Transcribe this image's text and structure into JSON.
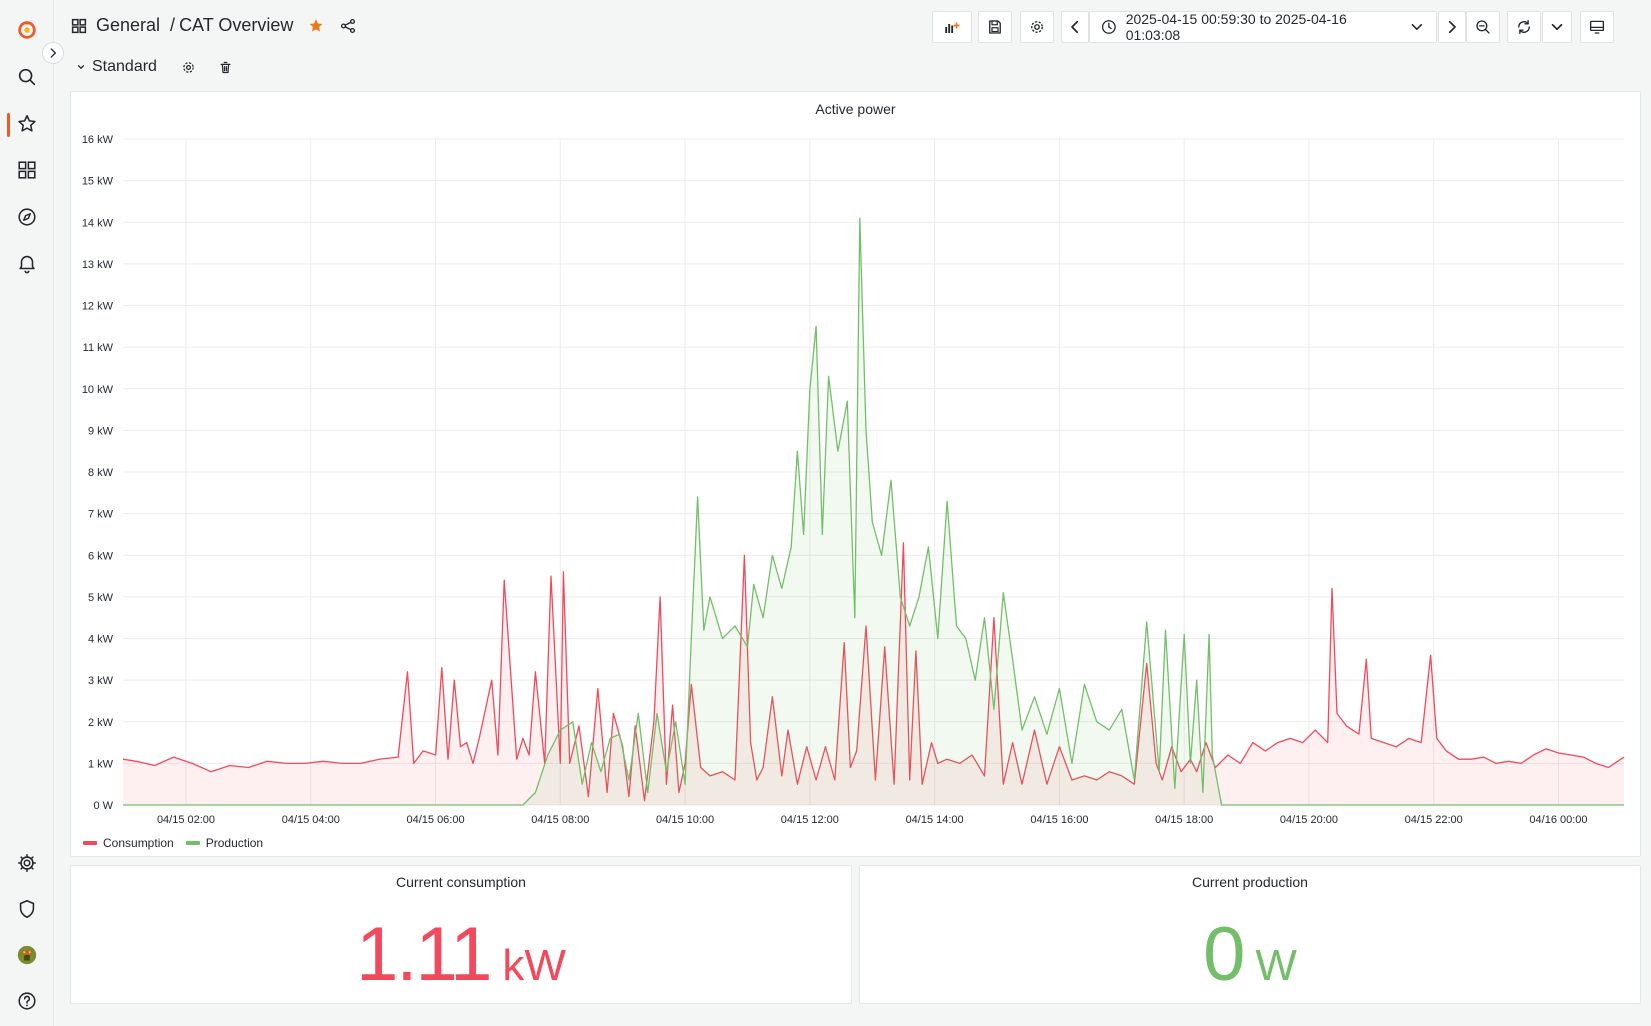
{
  "breadcrumb": {
    "folder": "General",
    "separator": "/",
    "dashboard": "CAT Overview"
  },
  "toolbar": {
    "time_range": "2025-04-15 00:59:30 to 2025-04-16 01:03:08"
  },
  "row": {
    "title": "Standard"
  },
  "sidebar": {
    "items": [
      "grafana-logo-icon",
      "search-icon",
      "starred-icon",
      "dashboards-icon",
      "explore-icon",
      "alerting-icon",
      "configuration-icon",
      "server-admin-icon",
      "user-avatar",
      "help-icon"
    ]
  },
  "colors": {
    "consumption": "#f2495c",
    "production": "#73bf69",
    "accent": "#f05a28",
    "star": "#eb7b18"
  },
  "chart_panel": {
    "title": "Active power",
    "legend": [
      {
        "name": "Consumption",
        "color": "#f2495c"
      },
      {
        "name": "Production",
        "color": "#73bf69"
      }
    ]
  },
  "chart_data": {
    "type": "line",
    "title": "Active power",
    "xlabel": "",
    "ylabel": "",
    "y_ticks": [
      "0 W",
      "1 kW",
      "2 kW",
      "3 kW",
      "4 kW",
      "5 kW",
      "6 kW",
      "7 kW",
      "8 kW",
      "9 kW",
      "10 kW",
      "11 kW",
      "12 kW",
      "13 kW",
      "14 kW",
      "15 kW",
      "16 kW"
    ],
    "ylim": [
      0,
      16
    ],
    "yunit": "kW",
    "x_ticks": [
      {
        "t": 2.0,
        "label": "04/15 02:00"
      },
      {
        "t": 4.0,
        "label": "04/15 04:00"
      },
      {
        "t": 6.0,
        "label": "04/15 06:00"
      },
      {
        "t": 8.0,
        "label": "04/15 08:00"
      },
      {
        "t": 10.0,
        "label": "04/15 10:00"
      },
      {
        "t": 12.0,
        "label": "04/15 12:00"
      },
      {
        "t": 14.0,
        "label": "04/15 14:00"
      },
      {
        "t": 16.0,
        "label": "04/15 16:00"
      },
      {
        "t": 18.0,
        "label": "04/15 18:00"
      },
      {
        "t": 20.0,
        "label": "04/15 20:00"
      },
      {
        "t": 22.0,
        "label": "04/15 22:00"
      },
      {
        "t": 24.0,
        "label": "04/16 00:00"
      }
    ],
    "xlim": [
      0.99,
      25.05
    ],
    "x_unit": "hours since 04/15 00:00",
    "grid": true,
    "legend_position": "bottom-left",
    "series": [
      {
        "name": "Consumption",
        "color": "#f2495c",
        "x": [
          0.99,
          1.2,
          1.5,
          1.8,
          2.1,
          2.4,
          2.7,
          3.0,
          3.3,
          3.6,
          3.9,
          4.2,
          4.5,
          4.8,
          5.1,
          5.4,
          5.55,
          5.65,
          5.8,
          6.0,
          6.1,
          6.2,
          6.3,
          6.4,
          6.5,
          6.6,
          6.7,
          6.9,
          7.0,
          7.1,
          7.3,
          7.4,
          7.5,
          7.6,
          7.75,
          7.85,
          8.0,
          8.05,
          8.15,
          8.3,
          8.45,
          8.6,
          8.75,
          8.85,
          9.0,
          9.1,
          9.2,
          9.35,
          9.5,
          9.6,
          9.7,
          9.8,
          9.9,
          10.0,
          10.1,
          10.25,
          10.4,
          10.6,
          10.8,
          10.95,
          11.05,
          11.15,
          11.25,
          11.4,
          11.55,
          11.65,
          11.8,
          11.95,
          12.1,
          12.25,
          12.4,
          12.55,
          12.65,
          12.75,
          12.9,
          13.05,
          13.2,
          13.35,
          13.5,
          13.6,
          13.7,
          13.8,
          13.95,
          14.05,
          14.2,
          14.4,
          14.6,
          14.8,
          14.95,
          15.1,
          15.25,
          15.4,
          15.6,
          15.8,
          16.0,
          16.2,
          16.4,
          16.6,
          16.8,
          17.0,
          17.2,
          17.4,
          17.55,
          17.65,
          17.8,
          17.95,
          18.1,
          18.2,
          18.35,
          18.5,
          18.7,
          18.9,
          19.1,
          19.3,
          19.5,
          19.7,
          19.9,
          20.1,
          20.3,
          20.37,
          20.45,
          20.6,
          20.8,
          20.92,
          21.0,
          21.2,
          21.4,
          21.6,
          21.8,
          21.95,
          22.05,
          22.2,
          22.4,
          22.6,
          22.8,
          23.0,
          23.2,
          23.4,
          23.6,
          23.8,
          24.0,
          24.2,
          24.4,
          24.6,
          24.8,
          25.05
        ],
        "y": [
          1.1,
          1.05,
          0.95,
          1.15,
          1.0,
          0.8,
          0.95,
          0.9,
          1.05,
          1.0,
          1.0,
          1.05,
          1.0,
          1.0,
          1.1,
          1.15,
          3.2,
          1.0,
          1.3,
          1.2,
          3.3,
          1.1,
          3.0,
          1.4,
          1.5,
          1.0,
          1.6,
          3.0,
          1.2,
          5.4,
          1.1,
          1.6,
          1.2,
          3.2,
          1.0,
          5.5,
          1.0,
          5.6,
          1.0,
          1.9,
          0.2,
          2.8,
          0.3,
          2.2,
          1.4,
          0.2,
          1.9,
          0.1,
          2.0,
          5.0,
          0.5,
          2.4,
          0.3,
          1.0,
          2.9,
          0.9,
          0.7,
          0.8,
          0.6,
          6.0,
          1.5,
          0.6,
          0.9,
          2.6,
          0.7,
          1.8,
          0.5,
          1.4,
          0.6,
          1.4,
          0.6,
          3.9,
          0.9,
          1.3,
          4.3,
          0.6,
          3.8,
          0.5,
          6.3,
          0.6,
          3.7,
          0.5,
          1.5,
          1.0,
          1.1,
          1.0,
          1.2,
          0.7,
          4.5,
          0.5,
          1.5,
          0.5,
          1.8,
          0.5,
          1.4,
          0.6,
          0.7,
          0.6,
          0.8,
          0.7,
          0.5,
          3.4,
          1.0,
          0.6,
          1.4,
          0.8,
          1.1,
          0.8,
          1.5,
          0.9,
          1.2,
          1.0,
          1.5,
          1.3,
          1.5,
          1.6,
          1.5,
          1.8,
          1.5,
          5.2,
          2.2,
          1.9,
          1.7,
          3.5,
          1.6,
          1.5,
          1.4,
          1.6,
          1.5,
          3.6,
          1.6,
          1.3,
          1.1,
          1.1,
          1.15,
          1.0,
          1.05,
          1.0,
          1.2,
          1.35,
          1.25,
          1.2,
          1.15,
          1.0,
          0.9,
          1.15
        ]
      },
      {
        "name": "Production",
        "color": "#73bf69",
        "x": [
          0.99,
          7.4,
          7.6,
          7.8,
          8.0,
          8.2,
          8.35,
          8.5,
          8.65,
          8.8,
          8.95,
          9.1,
          9.25,
          9.4,
          9.55,
          9.7,
          9.85,
          10.0,
          10.1,
          10.2,
          10.3,
          10.4,
          10.6,
          10.8,
          11.0,
          11.1,
          11.25,
          11.4,
          11.55,
          11.7,
          11.8,
          11.9,
          12.0,
          12.1,
          12.2,
          12.3,
          12.45,
          12.6,
          12.72,
          12.8,
          12.9,
          13.0,
          13.15,
          13.3,
          13.45,
          13.6,
          13.75,
          13.9,
          14.05,
          14.2,
          14.35,
          14.5,
          14.65,
          14.8,
          14.95,
          15.1,
          15.25,
          15.4,
          15.6,
          15.8,
          16.0,
          16.2,
          16.4,
          16.6,
          16.8,
          17.0,
          17.2,
          17.4,
          17.6,
          17.7,
          17.85,
          18.0,
          18.1,
          18.2,
          18.3,
          18.4,
          18.45,
          18.6,
          25.05
        ],
        "y": [
          0,
          0,
          0.3,
          1.2,
          1.8,
          2.0,
          0.5,
          1.5,
          0.8,
          1.6,
          1.7,
          0.6,
          2.2,
          0.3,
          2.2,
          0.8,
          2.0,
          0.5,
          4.0,
          7.4,
          4.2,
          5.0,
          4.0,
          4.3,
          3.8,
          5.3,
          4.5,
          6.0,
          5.2,
          6.2,
          8.5,
          6.5,
          10.0,
          11.5,
          6.5,
          10.3,
          8.5,
          9.7,
          4.5,
          14.1,
          9.0,
          6.8,
          6.0,
          7.8,
          5.0,
          4.3,
          5.0,
          6.2,
          4.0,
          7.3,
          4.3,
          4.0,
          3.0,
          4.5,
          2.3,
          5.1,
          3.5,
          1.8,
          2.6,
          1.7,
          2.8,
          1.0,
          2.9,
          2.0,
          1.8,
          2.3,
          0.6,
          4.4,
          0.8,
          4.2,
          0.4,
          4.1,
          1.0,
          3.0,
          0.3,
          4.1,
          1.2,
          0,
          0
        ]
      }
    ]
  },
  "stats": {
    "consumption": {
      "title": "Current consumption",
      "value": "1.11",
      "unit": "kW",
      "color": "#f2495c"
    },
    "production": {
      "title": "Current production",
      "value": "0",
      "unit": "W",
      "color": "#73bf69"
    }
  }
}
